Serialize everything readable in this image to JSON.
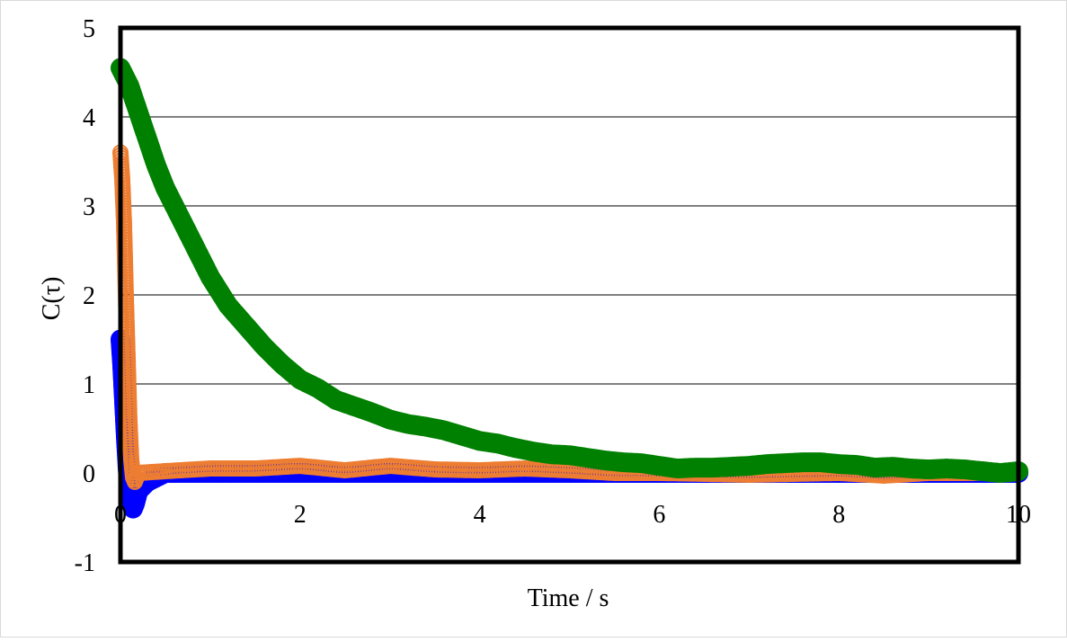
{
  "chart_data": {
    "type": "scatter",
    "title": "",
    "xlabel": "Time / s",
    "ylabel": "C(τ)",
    "xlim": [
      0,
      10
    ],
    "ylim": [
      -1,
      5
    ],
    "xticks": [
      0,
      2,
      4,
      6,
      8,
      10
    ],
    "yticks": [
      -1,
      0,
      1,
      2,
      3,
      4,
      5
    ],
    "xtick_labels": [
      "0",
      "2",
      "4",
      "6",
      "8",
      "10"
    ],
    "ytick_labels": [
      "-1",
      "0",
      "1",
      "2",
      "3",
      "4",
      "5"
    ],
    "grid": "horizontal",
    "legend": "none",
    "series": [
      {
        "color": "#0000ff",
        "marker": "filled-circle",
        "points": [
          [
            0.0,
            1.5
          ],
          [
            0.02,
            1.2
          ],
          [
            0.04,
            0.8
          ],
          [
            0.06,
            0.4
          ],
          [
            0.08,
            0.05
          ],
          [
            0.1,
            -0.2
          ],
          [
            0.12,
            -0.35
          ],
          [
            0.14,
            -0.4
          ],
          [
            0.16,
            -0.35
          ],
          [
            0.2,
            -0.2
          ],
          [
            0.3,
            -0.1
          ],
          [
            0.4,
            -0.05
          ],
          [
            0.5,
            0.0
          ],
          [
            1.0,
            0.0
          ],
          [
            2.0,
            0.0
          ],
          [
            3.0,
            0.0
          ],
          [
            4.0,
            0.0
          ],
          [
            5.0,
            0.0
          ],
          [
            6.0,
            0.0
          ],
          [
            7.0,
            0.0
          ],
          [
            8.0,
            0.0
          ],
          [
            9.0,
            0.0
          ],
          [
            10.0,
            0.0
          ]
        ]
      },
      {
        "color": "#ed7d31",
        "marker": "open-circle",
        "points": [
          [
            0.0,
            3.6
          ],
          [
            0.02,
            3.3
          ],
          [
            0.04,
            2.8
          ],
          [
            0.06,
            2.0
          ],
          [
            0.08,
            1.3
          ],
          [
            0.1,
            0.6
          ],
          [
            0.12,
            0.15
          ],
          [
            0.14,
            -0.05
          ],
          [
            0.16,
            -0.1
          ],
          [
            0.18,
            -0.05
          ],
          [
            0.2,
            0.0
          ],
          [
            0.5,
            0.02
          ],
          [
            1.0,
            0.05
          ],
          [
            1.5,
            0.05
          ],
          [
            2.0,
            0.08
          ],
          [
            2.5,
            0.03
          ],
          [
            3.0,
            0.08
          ],
          [
            3.5,
            0.04
          ],
          [
            4.0,
            0.03
          ],
          [
            4.5,
            0.05
          ],
          [
            5.0,
            0.03
          ],
          [
            5.5,
            0.0
          ],
          [
            6.0,
            0.0
          ],
          [
            7.0,
            -0.02
          ],
          [
            8.0,
            0.0
          ],
          [
            8.5,
            -0.03
          ],
          [
            9.0,
            0.0
          ],
          [
            9.5,
            0.0
          ],
          [
            10.0,
            0.02
          ]
        ]
      },
      {
        "color": "#008000",
        "marker": "filled-circle",
        "points": [
          [
            0.0,
            4.55
          ],
          [
            0.1,
            4.35
          ],
          [
            0.2,
            4.05
          ],
          [
            0.3,
            3.75
          ],
          [
            0.4,
            3.45
          ],
          [
            0.5,
            3.2
          ],
          [
            0.6,
            3.0
          ],
          [
            0.8,
            2.6
          ],
          [
            1.0,
            2.2
          ],
          [
            1.2,
            1.88
          ],
          [
            1.4,
            1.65
          ],
          [
            1.6,
            1.42
          ],
          [
            1.8,
            1.22
          ],
          [
            2.0,
            1.05
          ],
          [
            2.2,
            0.95
          ],
          [
            2.4,
            0.82
          ],
          [
            2.6,
            0.75
          ],
          [
            2.8,
            0.68
          ],
          [
            3.0,
            0.6
          ],
          [
            3.2,
            0.55
          ],
          [
            3.4,
            0.52
          ],
          [
            3.6,
            0.48
          ],
          [
            3.8,
            0.42
          ],
          [
            4.0,
            0.36
          ],
          [
            4.2,
            0.33
          ],
          [
            4.4,
            0.28
          ],
          [
            4.6,
            0.24
          ],
          [
            4.8,
            0.21
          ],
          [
            5.0,
            0.2
          ],
          [
            5.2,
            0.17
          ],
          [
            5.4,
            0.14
          ],
          [
            5.6,
            0.12
          ],
          [
            5.8,
            0.11
          ],
          [
            6.0,
            0.08
          ],
          [
            6.2,
            0.05
          ],
          [
            6.4,
            0.06
          ],
          [
            6.6,
            0.06
          ],
          [
            6.8,
            0.07
          ],
          [
            7.0,
            0.08
          ],
          [
            7.2,
            0.1
          ],
          [
            7.4,
            0.11
          ],
          [
            7.6,
            0.12
          ],
          [
            7.8,
            0.12
          ],
          [
            8.0,
            0.1
          ],
          [
            8.2,
            0.09
          ],
          [
            8.4,
            0.06
          ],
          [
            8.6,
            0.07
          ],
          [
            8.8,
            0.05
          ],
          [
            9.0,
            0.04
          ],
          [
            9.2,
            0.05
          ],
          [
            9.4,
            0.04
          ],
          [
            9.6,
            0.02
          ],
          [
            9.8,
            0.0
          ],
          [
            10.0,
            0.02
          ]
        ]
      }
    ]
  }
}
